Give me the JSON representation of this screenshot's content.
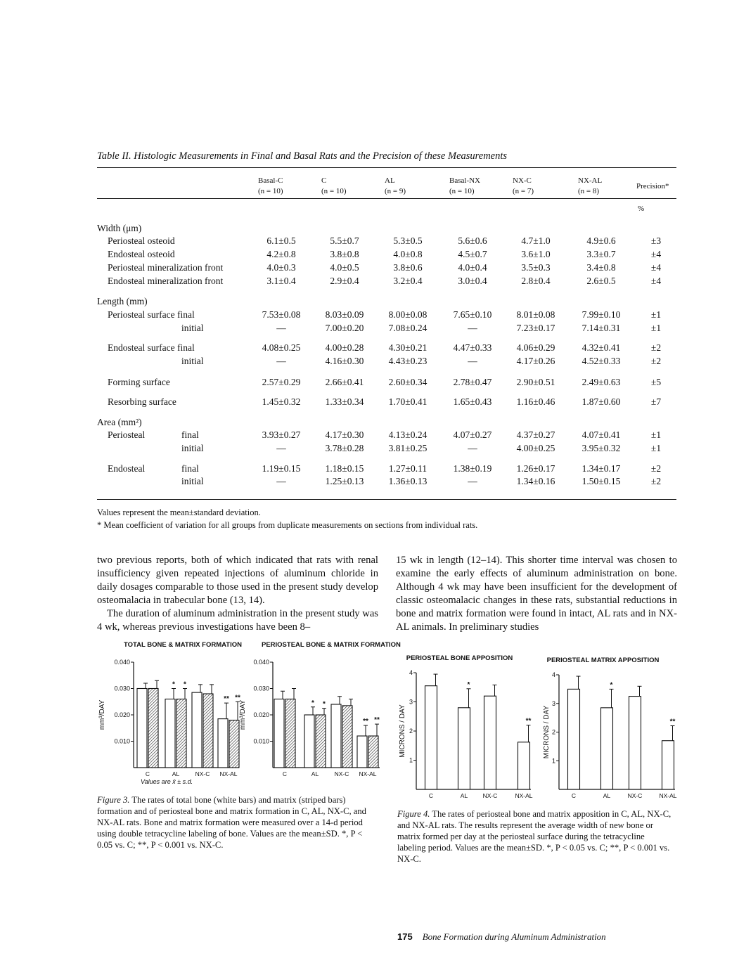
{
  "table": {
    "title": "Table II. Histologic Measurements in Final and Basal Rats and the Precision of these Measurements",
    "columns": [
      {
        "name": "Basal-C",
        "n": "(n = 10)"
      },
      {
        "name": "C",
        "n": "(n = 10)"
      },
      {
        "name": "AL",
        "n": "(n = 9)"
      },
      {
        "name": "Basal-NX",
        "n": "(n = 10)"
      },
      {
        "name": "NX-C",
        "n": "(n = 7)"
      },
      {
        "name": "NX-AL",
        "n": "(n = 8)"
      }
    ],
    "precision_header": "Precision*",
    "precision_unit": "%",
    "rows": [
      {
        "label": "Width (μm)",
        "type": "section",
        "values": []
      },
      {
        "label": "Periosteal osteoid",
        "indent": 1,
        "values": [
          "6.1±0.5",
          "5.5±0.7",
          "5.3±0.5",
          "5.6±0.6",
          "4.7±1.0",
          "4.9±0.6",
          "±3"
        ]
      },
      {
        "label": "Endosteal osteoid",
        "indent": 1,
        "values": [
          "4.2±0.8",
          "3.8±0.8",
          "4.0±0.8",
          "4.5±0.7",
          "3.6±1.0",
          "3.3±0.7",
          "±4"
        ]
      },
      {
        "label": "Periosteal mineralization front",
        "indent": 1,
        "values": [
          "4.0±0.3",
          "4.0±0.5",
          "3.8±0.6",
          "4.0±0.4",
          "3.5±0.3",
          "3.4±0.8",
          "±4"
        ]
      },
      {
        "label": "Endosteal mineralization front",
        "indent": 1,
        "values": [
          "3.1±0.4",
          "2.9±0.4",
          "3.2±0.4",
          "3.0±0.4",
          "2.8±0.4",
          "2.6±0.5",
          "±4"
        ]
      },
      {
        "label": "Length (mm)",
        "type": "section",
        "values": []
      },
      {
        "label": "Periosteal surface final",
        "indent": 1,
        "values": [
          "7.53±0.08",
          "8.03±0.09",
          "8.00±0.08",
          "7.65±0.10",
          "8.01±0.08",
          "7.99±0.10",
          "±1"
        ]
      },
      {
        "label": "initial",
        "indent": 2,
        "values": [
          "—",
          "7.00±0.20",
          "7.08±0.24",
          "—",
          "7.23±0.17",
          "7.14±0.31",
          "±1"
        ]
      },
      {
        "label": "Endosteal surface final",
        "indent": 1,
        "values": [
          "4.08±0.25",
          "4.00±0.28",
          "4.30±0.21",
          "4.47±0.33",
          "4.06±0.29",
          "4.32±0.41",
          "±2"
        ]
      },
      {
        "label": "initial",
        "indent": 2,
        "values": [
          "—",
          "4.16±0.30",
          "4.43±0.23",
          "—",
          "4.17±0.26",
          "4.52±0.33",
          "±2"
        ]
      },
      {
        "label": "Forming surface",
        "indent": 1,
        "values": [
          "2.57±0.29",
          "2.66±0.41",
          "2.60±0.34",
          "2.78±0.47",
          "2.90±0.51",
          "2.49±0.63",
          "±5"
        ]
      },
      {
        "label": "Resorbing surface",
        "indent": 1,
        "values": [
          "1.45±0.32",
          "1.33±0.34",
          "1.70±0.41",
          "1.65±0.43",
          "1.16±0.46",
          "1.87±0.60",
          "±7"
        ]
      },
      {
        "label": "Area (mm²)",
        "type": "section",
        "values": []
      },
      {
        "label": "Periosteal",
        "sub": "final",
        "indent": 1,
        "values": [
          "3.93±0.27",
          "4.17±0.30",
          "4.13±0.24",
          "4.07±0.27",
          "4.37±0.27",
          "4.07±0.41",
          "±1"
        ]
      },
      {
        "label": "",
        "sub": "initial",
        "indent": 1,
        "values": [
          "—",
          "3.78±0.28",
          "3.81±0.25",
          "—",
          "4.00±0.25",
          "3.95±0.32",
          "±1"
        ]
      },
      {
        "label": "Endosteal",
        "sub": "final",
        "indent": 1,
        "values": [
          "1.19±0.15",
          "1.18±0.15",
          "1.27±0.11",
          "1.38±0.19",
          "1.26±0.17",
          "1.34±0.17",
          "±2"
        ]
      },
      {
        "label": "",
        "sub": "initial",
        "indent": 1,
        "values": [
          "—",
          "1.25±0.13",
          "1.36±0.13",
          "—",
          "1.34±0.16",
          "1.50±0.15",
          "±2"
        ]
      }
    ],
    "notes": [
      "Values represent the mean±standard deviation.",
      "* Mean coefficient of variation for all groups from duplicate measurements on sections from individual rats."
    ]
  },
  "body": {
    "left": [
      "two previous reports, both of which indicated that rats with renal insufficiency given repeated injections of aluminum chloride in daily dosages comparable to those used in the present study develop osteomalacia in trabecular bone (13, 14).",
      "The duration of aluminum administration in the present study was 4 wk, whereas previous investigations have been 8–"
    ],
    "right": "15 wk in length (12–14). This shorter time interval was chosen to examine the early effects of aluminum administration on bone. Although 4 wk may have been insufficient for the development of classic osteomalacic changes in these rats, substantial reductions in bone and matrix formation were found in intact, AL rats and in NX-AL animals. In preliminary studies"
  },
  "chart_data": [
    {
      "type": "bar",
      "title": "TOTAL BONE & MATRIX FORMATION",
      "ylabel": "mm³/DAY",
      "ylim": [
        0,
        0.04
      ],
      "yticks": [
        "0.010",
        "0.020",
        "0.030",
        "0.040"
      ],
      "categories": [
        "C",
        "AL",
        "NX-C",
        "NX-AL"
      ],
      "series": [
        {
          "style": "white",
          "values": [
            0.03,
            0.026,
            0.0285,
            0.0185
          ],
          "errors": [
            0.002,
            0.004,
            0.003,
            0.006
          ]
        },
        {
          "style": "striped",
          "values": [
            0.03,
            0.026,
            0.028,
            0.018
          ],
          "errors": [
            0.003,
            0.004,
            0.0035,
            0.007
          ]
        }
      ],
      "annotations": [
        "",
        "*",
        "",
        "**"
      ],
      "footnote": "Values are x̄ ± s.d."
    },
    {
      "type": "bar",
      "title": "PERIOSTEAL BONE & MATRIX FORMATION",
      "ylabel": "mm³/DAY",
      "ylim": [
        0,
        0.04
      ],
      "yticks": [
        "0.010",
        "0.020",
        "0.030",
        "0.040"
      ],
      "categories": [
        "C",
        "AL",
        "NX-C",
        "NX-AL"
      ],
      "series": [
        {
          "style": "white",
          "values": [
            0.026,
            0.02,
            0.024,
            0.012
          ],
          "errors": [
            0.003,
            0.003,
            0.003,
            0.004
          ]
        },
        {
          "style": "striped",
          "values": [
            0.026,
            0.02,
            0.0235,
            0.012
          ],
          "errors": [
            0.004,
            0.0025,
            0.0025,
            0.0045
          ]
        }
      ],
      "annotations": [
        "",
        "*",
        "",
        "**"
      ]
    },
    {
      "type": "bar",
      "title": "PERIOSTEAL BONE APPOSITION",
      "ylabel": "MICRONS / DAY",
      "ylim": [
        0,
        4
      ],
      "yticks": [
        "1",
        "2",
        "3",
        "4"
      ],
      "categories": [
        "C",
        "AL",
        "NX-C",
        "NX-AL"
      ],
      "series": [
        {
          "style": "white",
          "values": [
            3.55,
            2.8,
            3.2,
            1.62
          ],
          "errors": [
            0.4,
            0.65,
            0.38,
            0.58
          ]
        }
      ],
      "annotations": [
        "",
        "*",
        "",
        "**"
      ]
    },
    {
      "type": "bar",
      "title": "PERIOSTEAL MATRIX APPOSITION",
      "ylabel": "MICRONS / DAY",
      "ylim": [
        0,
        4
      ],
      "yticks": [
        "1",
        "2",
        "3",
        "4"
      ],
      "categories": [
        "C",
        "AL",
        "NX-C",
        "NX-AL"
      ],
      "series": [
        {
          "style": "white",
          "values": [
            3.5,
            2.85,
            3.25,
            1.7
          ],
          "errors": [
            0.45,
            0.65,
            0.35,
            0.52
          ]
        }
      ],
      "annotations": [
        "",
        "*",
        "",
        "**"
      ]
    }
  ],
  "captions": {
    "fig3_label": "Figure 3.",
    "fig3": " The rates of total bone (white bars) and matrix (striped bars) formation and of periosteal bone and matrix formation in C, AL, NX-C, and NX-AL rats. Bone and matrix formation were measured over a 14-d period using double tetracycline labeling of bone. Values are the mean±SD. *, P < 0.05 vs. C; **, P < 0.001 vs. NX-C.",
    "fig4_label": "Figure 4.",
    "fig4": " The rates of periosteal bone and matrix apposition in C, AL, NX-C, and NX-AL rats. The results represent the average width of new bone or matrix formed per day at the periosteal surface during the tetracycline labeling period. Values are the mean±SD. *, P < 0.05 vs. C; **, P < 0.001 vs. NX-C."
  },
  "footer": {
    "page": "175",
    "running_title": "Bone Formation during Aluminum Administration"
  }
}
